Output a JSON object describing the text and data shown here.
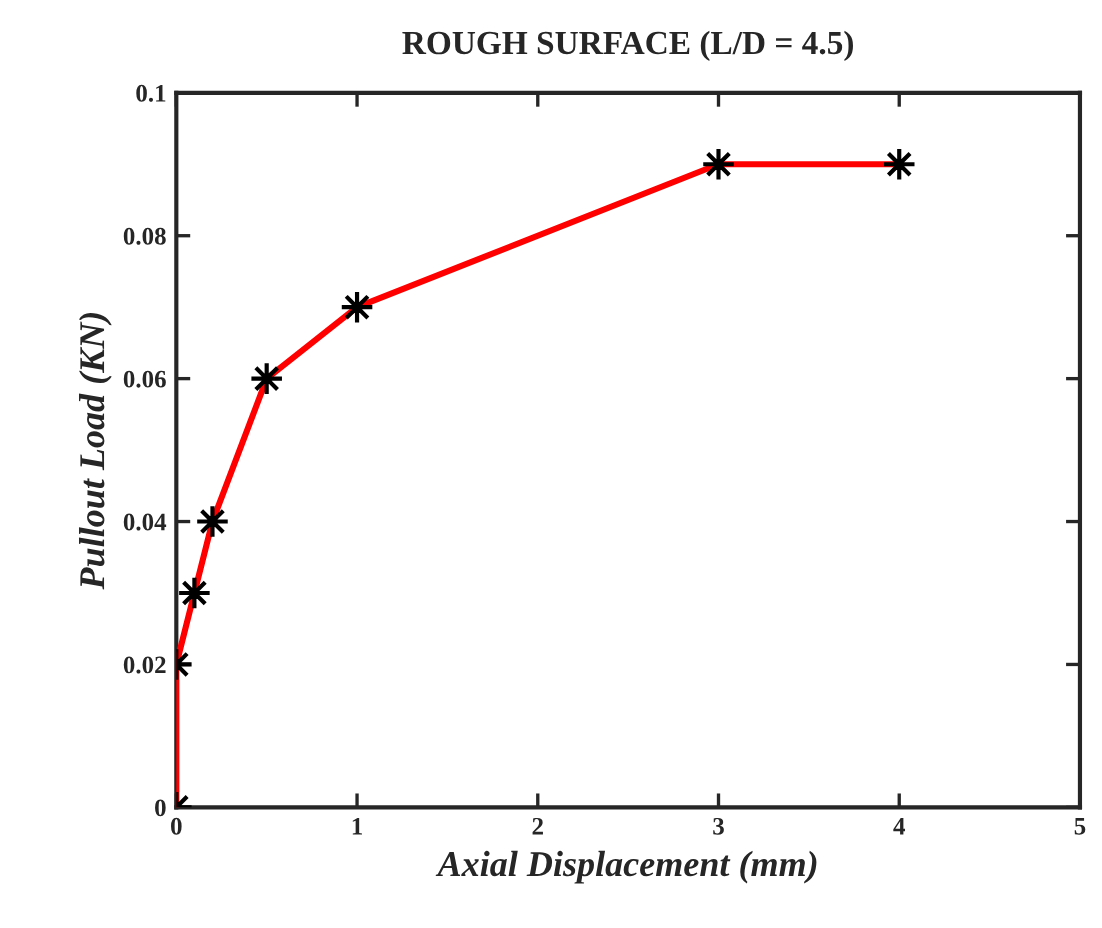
{
  "chart_data": {
    "type": "line",
    "title": "ROUGH SURFACE (L/D = 4.5)",
    "xlabel": "Axial Displacement (mm)",
    "ylabel": "Pullout Load (KN)",
    "x": [
      0,
      0,
      0.1,
      0.2,
      0.5,
      1,
      3,
      4
    ],
    "series": [
      {
        "color": "#ff0000",
        "values": [
          0,
          0.02,
          0.03,
          0.04,
          0.06,
          0.07,
          0.09,
          0.09
        ]
      }
    ],
    "xlim": [
      0,
      5
    ],
    "ylim": [
      0,
      0.1
    ],
    "xticks": [
      0,
      1,
      2,
      3,
      4,
      5
    ],
    "yticks": [
      0,
      0.02,
      0.04,
      0.06,
      0.08,
      0.1
    ],
    "marker": "star",
    "line_style": "solid",
    "grid": false,
    "legend": false
  }
}
